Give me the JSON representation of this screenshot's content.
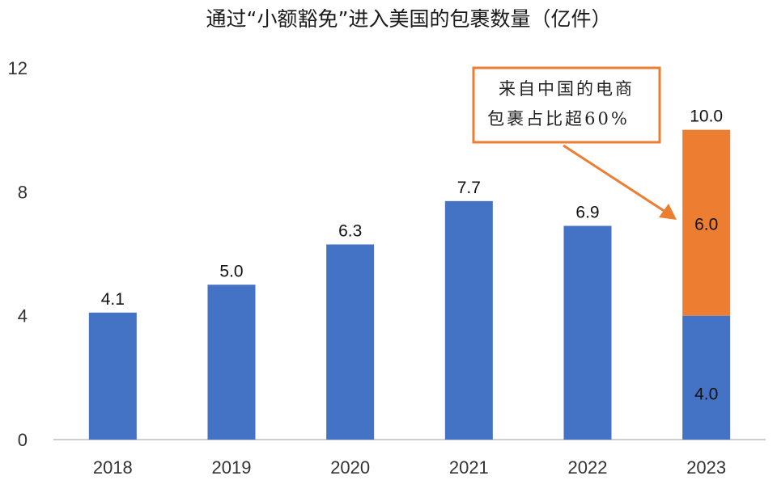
{
  "chart_data": {
    "type": "bar",
    "title": "通过“小额豁免”进入美国的包裹数量（亿件）",
    "categories": [
      "2018",
      "2019",
      "2020",
      "2021",
      "2022",
      "2023"
    ],
    "values": [
      4.1,
      5.0,
      6.3,
      7.7,
      6.9,
      10.0
    ],
    "value_labels": [
      "4.1",
      "5.0",
      "6.3",
      "7.7",
      "6.9",
      "10.0"
    ],
    "stacked_last": {
      "category": "2023",
      "segments": [
        {
          "value": 4.0,
          "label": "4.0",
          "color": "#4472C4"
        },
        {
          "value": 6.0,
          "label": "6.0",
          "color": "#ED7D31"
        }
      ]
    },
    "ylim": [
      0,
      12
    ],
    "yticks": [
      "0",
      "4",
      "8",
      "12"
    ],
    "grid": false,
    "annotation": {
      "lines": [
        "来自中国的电商",
        "包裹占比超60%"
      ],
      "border_color": "#ED7D31"
    },
    "colors": {
      "bar": "#4472C4",
      "accent": "#ED7D31",
      "axis": "#bfbfbf"
    }
  }
}
